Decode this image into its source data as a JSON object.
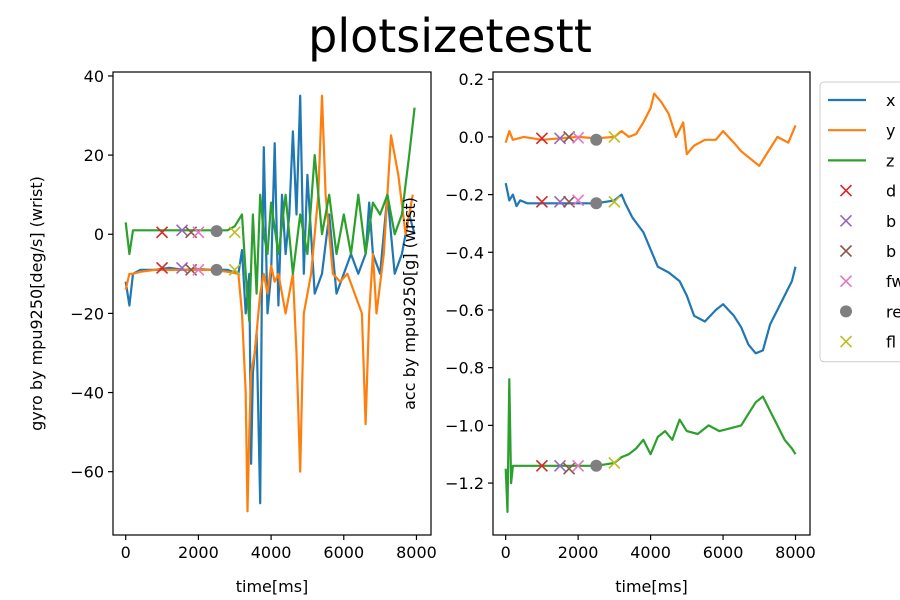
{
  "figure": {
    "title": "plotsizetestt",
    "colors": {
      "x": "#1f77b4",
      "y": "#ff7f0e",
      "z": "#2ca02c",
      "d": "#d62728",
      "b1": "#9467bd",
      "b2": "#8c564b",
      "fw": "#e377c2",
      "re": "#7f7f7f",
      "fl": "#bcbd22"
    }
  },
  "chart_data": [
    {
      "type": "line",
      "title": "",
      "xlabel": "time[ms]",
      "ylabel": "gyro by mpu9250[deg/s] (wrist)",
      "xlim": [
        -350,
        8400
      ],
      "ylim": [
        -76,
        41
      ],
      "xticks": [
        0,
        2000,
        4000,
        6000,
        8000
      ],
      "xtick_labels": [
        "0",
        "2000",
        "4000",
        "6000",
        "8000"
      ],
      "yticks": [
        -60,
        -40,
        -20,
        0,
        20,
        40
      ],
      "ytick_labels": [
        "−60",
        "−40",
        "−20",
        "0",
        "20",
        "40"
      ],
      "series": [
        {
          "name": "x",
          "color": "x",
          "x": [
            0,
            100,
            200,
            400,
            800,
            1200,
            1600,
            2000,
            2400,
            2800,
            3100,
            3200,
            3300,
            3400,
            3450,
            3500,
            3600,
            3700,
            3750,
            3800,
            3900,
            4000,
            4100,
            4200,
            4300,
            4400,
            4500,
            4600,
            4700,
            4800,
            4900,
            5000,
            5200,
            5400,
            5600,
            5800,
            6000,
            6200,
            6400,
            6600,
            6700,
            6800,
            7000,
            7200,
            7400,
            7600,
            7800,
            7950
          ],
          "y": [
            -12,
            -18,
            -10,
            -9,
            -9,
            -8.5,
            -9,
            -8.8,
            -9,
            -9,
            -10,
            -4,
            -20,
            -10,
            -58,
            -35,
            -25,
            -68,
            -10,
            22,
            -20,
            -10,
            23,
            -18,
            10,
            -5,
            5,
            26,
            5,
            35,
            -10,
            15,
            -15,
            -10,
            5,
            -15,
            -10,
            -5,
            -10,
            -5,
            8,
            -5,
            -10,
            10,
            -10,
            -5,
            5,
            0
          ]
        },
        {
          "name": "y",
          "color": "y",
          "x": [
            0,
            100,
            200,
            400,
            800,
            1200,
            1600,
            2000,
            2400,
            2800,
            3100,
            3200,
            3300,
            3350,
            3400,
            3450,
            3550,
            3700,
            3800,
            3900,
            4000,
            4100,
            4200,
            4400,
            4600,
            4700,
            4800,
            4900,
            5100,
            5300,
            5400,
            5500,
            5700,
            5900,
            6100,
            6300,
            6500,
            6600,
            6700,
            6800,
            6900,
            7100,
            7300,
            7500,
            7700,
            7900
          ],
          "y": [
            -14,
            -10,
            -10,
            -9.5,
            -9,
            -9,
            -9,
            -9,
            -9,
            -9.5,
            -10,
            -20,
            -40,
            -70,
            -50,
            -35,
            -30,
            -15,
            -10,
            -15,
            -8,
            -12,
            -10,
            -20,
            -10,
            -30,
            -60,
            -20,
            -10,
            10,
            35,
            10,
            -10,
            -12,
            -10,
            -15,
            -20,
            -48,
            -20,
            -5,
            -20,
            -5,
            25,
            15,
            0,
            10
          ]
        },
        {
          "name": "z",
          "color": "z",
          "x": [
            0,
            100,
            200,
            400,
            800,
            1200,
            1600,
            2000,
            2400,
            2800,
            3000,
            3200,
            3300,
            3400,
            3500,
            3600,
            3700,
            3800,
            3900,
            4000,
            4200,
            4400,
            4600,
            4800,
            5000,
            5200,
            5400,
            5600,
            5800,
            6000,
            6200,
            6400,
            6600,
            6800,
            7000,
            7200,
            7400,
            7600,
            7800,
            7950
          ],
          "y": [
            3,
            -5,
            1,
            1,
            1,
            1,
            1,
            1,
            1,
            1,
            2,
            5,
            -10,
            -22,
            5,
            -15,
            10,
            0,
            -5,
            8,
            -5,
            10,
            -10,
            5,
            -5,
            20,
            0,
            10,
            -5,
            5,
            -5,
            10,
            -5,
            8,
            5,
            10,
            0,
            5,
            20,
            32
          ]
        }
      ],
      "markers": [
        {
          "name": "d",
          "color": "d",
          "symbol": "x",
          "points": [
            [
              1000,
              0.5
            ],
            [
              1000,
              -8.5
            ]
          ]
        },
        {
          "name": "b",
          "color": "b1",
          "symbol": "x",
          "points": [
            [
              1550,
              1
            ],
            [
              1550,
              -8.5
            ]
          ]
        },
        {
          "name": "b",
          "color": "b2",
          "symbol": "x",
          "points": [
            [
              1800,
              0.5
            ],
            [
              1800,
              -9
            ]
          ]
        },
        {
          "name": "fw",
          "color": "fw",
          "symbol": "x",
          "points": [
            [
              2000,
              0.5
            ],
            [
              2000,
              -9
            ]
          ]
        },
        {
          "name": "re",
          "color": "re",
          "symbol": "o",
          "points": [
            [
              2500,
              0.8
            ],
            [
              2500,
              -9
            ]
          ]
        },
        {
          "name": "fl",
          "color": "fl",
          "symbol": "x",
          "points": [
            [
              3000,
              0.5
            ],
            [
              3000,
              -9
            ]
          ]
        }
      ]
    },
    {
      "type": "line",
      "title": "",
      "xlabel": "time[ms]",
      "ylabel": "acc by mpu9250[g] (wrist)",
      "xlim": [
        -350,
        8400
      ],
      "ylim": [
        -1.38,
        0.225
      ],
      "xticks": [
        0,
        2000,
        4000,
        6000,
        8000
      ],
      "xtick_labels": [
        "0",
        "2000",
        "4000",
        "6000",
        "8000"
      ],
      "yticks": [
        -1.2,
        -1.0,
        -0.8,
        -0.6,
        -0.4,
        -0.2,
        0.0,
        0.2
      ],
      "ytick_labels": [
        "−1.2",
        "−1.0",
        "−0.8",
        "−0.6",
        "−0.4",
        "−0.2",
        "0.0",
        "0.2"
      ],
      "series": [
        {
          "name": "x",
          "color": "x",
          "x": [
            0,
            100,
            200,
            300,
            400,
            600,
            1000,
            1500,
            2000,
            2500,
            3000,
            3200,
            3300,
            3500,
            3800,
            4000,
            4200,
            4500,
            4800,
            5000,
            5200,
            5500,
            5800,
            6000,
            6300,
            6500,
            6700,
            6900,
            7100,
            7300,
            7500,
            7700,
            7900,
            8000
          ],
          "y": [
            -0.16,
            -0.22,
            -0.2,
            -0.24,
            -0.22,
            -0.23,
            -0.23,
            -0.23,
            -0.23,
            -0.23,
            -0.22,
            -0.2,
            -0.23,
            -0.28,
            -0.33,
            -0.39,
            -0.45,
            -0.47,
            -0.5,
            -0.55,
            -0.62,
            -0.64,
            -0.6,
            -0.58,
            -0.62,
            -0.66,
            -0.72,
            -0.75,
            -0.74,
            -0.65,
            -0.6,
            -0.55,
            -0.5,
            -0.45
          ]
        },
        {
          "name": "y",
          "color": "y",
          "x": [
            0,
            100,
            200,
            500,
            1000,
            1500,
            2000,
            2500,
            3000,
            3200,
            3400,
            3600,
            3800,
            4000,
            4100,
            4300,
            4500,
            4700,
            4900,
            5000,
            5200,
            5500,
            5800,
            6000,
            6300,
            6500,
            6800,
            7000,
            7200,
            7500,
            7800,
            8000
          ],
          "y": [
            -0.02,
            0.02,
            -0.01,
            0.0,
            -0.01,
            -0.005,
            0.0,
            -0.005,
            0.0,
            0.02,
            0.0,
            0.01,
            0.05,
            0.1,
            0.15,
            0.12,
            0.08,
            0.0,
            0.05,
            -0.06,
            -0.03,
            -0.01,
            -0.01,
            0.02,
            -0.02,
            -0.05,
            -0.08,
            -0.1,
            -0.06,
            0.0,
            -0.02,
            0.04
          ]
        },
        {
          "name": "z",
          "color": "z",
          "x": [
            0,
            50,
            100,
            150,
            200,
            400,
            1000,
            1500,
            2000,
            2500,
            3000,
            3200,
            3400,
            3600,
            3800,
            4000,
            4200,
            4400,
            4600,
            4800,
            5000,
            5300,
            5600,
            5900,
            6200,
            6500,
            6700,
            6900,
            7100,
            7300,
            7500,
            7700,
            7900,
            8000
          ],
          "y": [
            -1.15,
            -1.3,
            -0.84,
            -1.2,
            -1.14,
            -1.14,
            -1.14,
            -1.14,
            -1.14,
            -1.14,
            -1.13,
            -1.11,
            -1.1,
            -1.08,
            -1.05,
            -1.1,
            -1.04,
            -1.02,
            -1.05,
            -0.98,
            -1.02,
            -1.03,
            -1.0,
            -1.02,
            -1.01,
            -1.0,
            -0.96,
            -0.92,
            -0.9,
            -0.95,
            -1.0,
            -1.05,
            -1.08,
            -1.1
          ]
        }
      ],
      "markers": [
        {
          "name": "d",
          "color": "d",
          "symbol": "x",
          "points": [
            [
              1000,
              -0.005
            ],
            [
              1000,
              -0.225
            ],
            [
              1000,
              -1.14
            ]
          ]
        },
        {
          "name": "b",
          "color": "b1",
          "symbol": "x",
          "points": [
            [
              1500,
              -0.005
            ],
            [
              1500,
              -0.225
            ],
            [
              1500,
              -1.14
            ]
          ]
        },
        {
          "name": "b",
          "color": "b2",
          "symbol": "x",
          "points": [
            [
              1750,
              0.0
            ],
            [
              1750,
              -0.225
            ],
            [
              1750,
              -1.15
            ]
          ]
        },
        {
          "name": "fw",
          "color": "fw",
          "symbol": "x",
          "points": [
            [
              2000,
              -0.003
            ],
            [
              2000,
              -0.22
            ],
            [
              2000,
              -1.14
            ]
          ]
        },
        {
          "name": "re",
          "color": "re",
          "symbol": "o",
          "points": [
            [
              2500,
              -0.01
            ],
            [
              2500,
              -0.23
            ],
            [
              2500,
              -1.14
            ]
          ]
        },
        {
          "name": "fl",
          "color": "fl",
          "symbol": "x",
          "points": [
            [
              3000,
              0.0
            ],
            [
              3000,
              -0.225
            ],
            [
              3000,
              -1.13
            ]
          ]
        }
      ]
    }
  ],
  "legend": {
    "placement": "outside-right",
    "entries": [
      {
        "label": "x",
        "kind": "line",
        "color": "x"
      },
      {
        "label": "y",
        "kind": "line",
        "color": "y"
      },
      {
        "label": "z",
        "kind": "line",
        "color": "z"
      },
      {
        "label": "d",
        "kind": "x",
        "color": "d"
      },
      {
        "label": "b",
        "kind": "x",
        "color": "b1"
      },
      {
        "label": "b",
        "kind": "x",
        "color": "b2"
      },
      {
        "label": "fw",
        "kind": "x",
        "color": "fw"
      },
      {
        "label": "re",
        "kind": "o",
        "color": "re"
      },
      {
        "label": "fl",
        "kind": "x",
        "color": "fl"
      }
    ]
  }
}
